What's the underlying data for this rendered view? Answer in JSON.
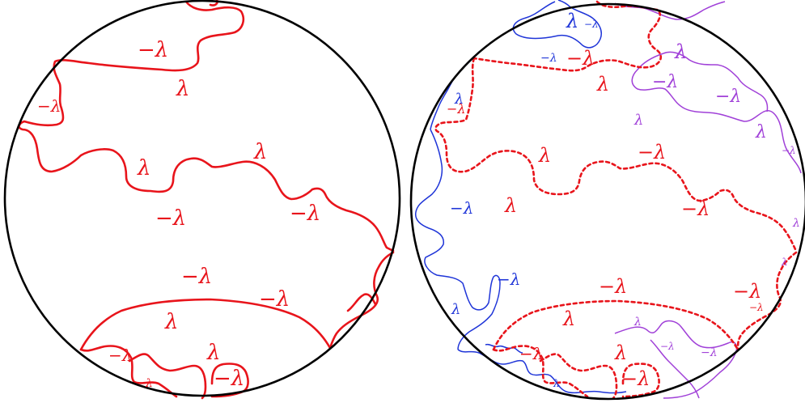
{
  "symbols": {
    "pos": "λ",
    "neg": "−λ"
  },
  "colors": {
    "red": "#e8141b",
    "blue": "#1f35d8",
    "purple": "#a040d8",
    "disk": "#000000"
  },
  "left_disk": {
    "labels": [
      "−λ",
      "λ",
      "−λ",
      "λ",
      "λ",
      "−λ",
      "−λ",
      "−λ",
      "−λ",
      "λ",
      "−λ",
      "λ",
      "−λ",
      "λ"
    ]
  },
  "right_disk": {
    "labels": [
      "λ",
      "−λ",
      "−λ",
      "−λ",
      "λ",
      "λ",
      "−λ",
      "−λ",
      "λ",
      "λ",
      "λ",
      "−λ",
      "λ",
      "−λ",
      "−λ",
      "λ",
      "−λ",
      "−λ",
      "λ",
      "λ",
      "−λ",
      "λ",
      "−λ",
      "−λ",
      "λ",
      "−λ",
      "−λ",
      "λ",
      "λ",
      "−λ",
      "−λ",
      "−λ",
      "λ"
    ]
  }
}
